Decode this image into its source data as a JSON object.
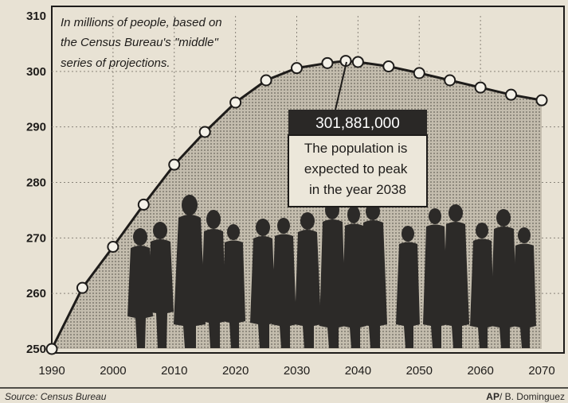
{
  "chart_data": {
    "type": "area",
    "note": [
      "In millions of people, based on",
      "the Census Bureau's \"middle\"",
      "series of projections."
    ],
    "x": [
      1990,
      1995,
      2000,
      2005,
      2010,
      2015,
      2020,
      2025,
      2030,
      2035,
      2038,
      2040,
      2045,
      2050,
      2055,
      2060,
      2065,
      2070
    ],
    "y": [
      250.0,
      261.0,
      268.4,
      276.0,
      283.2,
      289.1,
      294.4,
      298.4,
      300.6,
      301.5,
      301.9,
      301.7,
      300.9,
      299.7,
      298.4,
      297.1,
      295.8,
      294.8
    ],
    "xlim": [
      1990,
      2070
    ],
    "ylim": [
      250,
      310
    ],
    "x_ticks": [
      "1990",
      "2000",
      "2010",
      "2020",
      "2030",
      "2040",
      "2050",
      "2060",
      "2070"
    ],
    "y_ticks": [
      "250",
      "260",
      "270",
      "280",
      "290",
      "300",
      "310"
    ],
    "grid": true,
    "peak": {
      "value": "301,881,000",
      "text": [
        "The population is",
        "expected to peak",
        "in the year 2038"
      ]
    },
    "source": "Source:  Census Bureau",
    "credit_bold": "AP",
    "credit": "/ B. Dominguez",
    "colors": {
      "ink": "#1e1c1a",
      "fill": "#bdb6a8",
      "paper": "#e8e2d4",
      "silhouette": "#2c2a28"
    }
  }
}
